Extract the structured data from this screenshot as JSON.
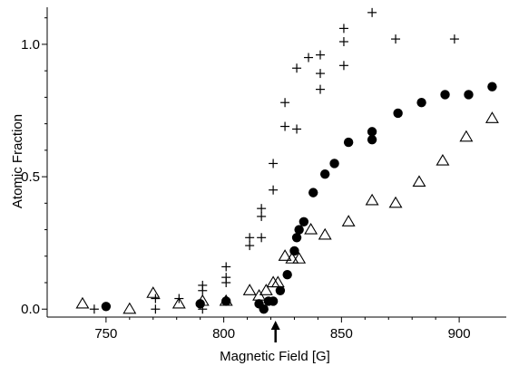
{
  "chart_data": {
    "type": "scatter",
    "xlabel": "Magnetic Field [G]",
    "ylabel": "Atomic Fraction",
    "xlim": [
      725,
      920
    ],
    "ylim": [
      -0.03,
      1.14
    ],
    "x_ticks": [
      750,
      800,
      850,
      900
    ],
    "x_tick_labels": [
      "750",
      "800",
      "850",
      "900"
    ],
    "y_ticks": [
      0.0,
      0.5,
      1.0
    ],
    "y_tick_labels": [
      "0.0",
      "0.5",
      "1.0"
    ],
    "grid": false,
    "legend": "none",
    "annotations": [
      {
        "type": "arrow",
        "x": 822,
        "direction": "up"
      }
    ],
    "series": [
      {
        "marker": "plus",
        "color": "#000000",
        "points": [
          [
            745,
            0.0
          ],
          [
            771,
            0.0
          ],
          [
            771,
            0.04
          ],
          [
            781,
            0.04
          ],
          [
            791,
            0.0
          ],
          [
            791,
            0.07
          ],
          [
            791,
            0.09
          ],
          [
            801,
            0.1
          ],
          [
            801,
            0.12
          ],
          [
            801,
            0.16
          ],
          [
            811,
            0.24
          ],
          [
            811,
            0.27
          ],
          [
            816,
            0.35
          ],
          [
            816,
            0.38
          ],
          [
            816,
            0.27
          ],
          [
            821,
            0.45
          ],
          [
            821,
            0.55
          ],
          [
            826,
            0.69
          ],
          [
            826,
            0.78
          ],
          [
            831,
            0.68
          ],
          [
            831,
            0.91
          ],
          [
            836,
            0.95
          ],
          [
            841,
            0.83
          ],
          [
            841,
            0.89
          ],
          [
            841,
            0.96
          ],
          [
            851,
            0.92
          ],
          [
            851,
            1.01
          ],
          [
            851,
            1.06
          ],
          [
            863,
            1.12
          ],
          [
            873,
            1.02
          ],
          [
            898,
            1.02
          ]
        ]
      },
      {
        "marker": "filled-circle",
        "color": "#000000",
        "points": [
          [
            750,
            0.01
          ],
          [
            790,
            0.02
          ],
          [
            801,
            0.03
          ],
          [
            815,
            0.02
          ],
          [
            817,
            0.0
          ],
          [
            819,
            0.03
          ],
          [
            821,
            0.03
          ],
          [
            824,
            0.07
          ],
          [
            827,
            0.13
          ],
          [
            830,
            0.22
          ],
          [
            831,
            0.27
          ],
          [
            832,
            0.3
          ],
          [
            834,
            0.33
          ],
          [
            838,
            0.44
          ],
          [
            843,
            0.51
          ],
          [
            847,
            0.55
          ],
          [
            853,
            0.63
          ],
          [
            863,
            0.64
          ],
          [
            863,
            0.67
          ],
          [
            874,
            0.74
          ],
          [
            884,
            0.78
          ],
          [
            894,
            0.81
          ],
          [
            904,
            0.81
          ],
          [
            914,
            0.84
          ]
        ]
      },
      {
        "marker": "open-triangle",
        "color": "#000000",
        "points": [
          [
            740,
            0.02
          ],
          [
            760,
            0.0
          ],
          [
            770,
            0.06
          ],
          [
            781,
            0.02
          ],
          [
            791,
            0.03
          ],
          [
            801,
            0.03
          ],
          [
            811,
            0.07
          ],
          [
            815,
            0.05
          ],
          [
            818,
            0.07
          ],
          [
            821,
            0.1
          ],
          [
            823,
            0.1
          ],
          [
            826,
            0.2
          ],
          [
            829,
            0.19
          ],
          [
            832,
            0.19
          ],
          [
            837,
            0.3
          ],
          [
            843,
            0.28
          ],
          [
            853,
            0.33
          ],
          [
            863,
            0.41
          ],
          [
            873,
            0.4
          ],
          [
            883,
            0.48
          ],
          [
            893,
            0.56
          ],
          [
            903,
            0.65
          ],
          [
            914,
            0.72
          ]
        ]
      }
    ]
  }
}
